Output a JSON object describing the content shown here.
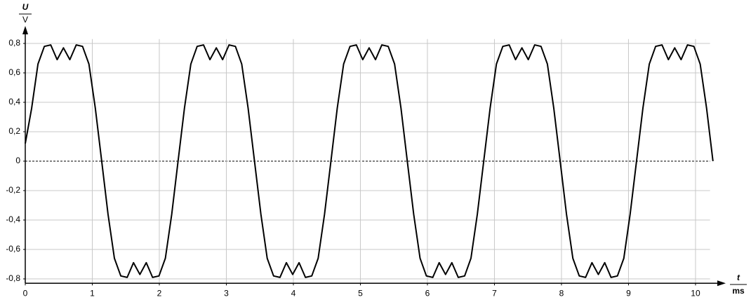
{
  "chart_data": {
    "type": "line",
    "ylabel": {
      "symbol": "U",
      "unit": "V"
    },
    "xlabel": {
      "symbol": "t",
      "unit": "ms"
    },
    "x": [
      0,
      0.095,
      0.19,
      0.285,
      0.38,
      0.475,
      0.57,
      0.665,
      0.76,
      0.855,
      0.95,
      1.045,
      1.14,
      1.235,
      1.33,
      1.425,
      1.52,
      1.615,
      1.71,
      1.805,
      1.9,
      1.995,
      2.09,
      2.185,
      2.28,
      2.375,
      2.47,
      2.565,
      2.66,
      2.755,
      2.85,
      2.945,
      3.04,
      3.135,
      3.23,
      3.325,
      3.42,
      3.515,
      3.61,
      3.705,
      3.8,
      3.895,
      3.99,
      4.085,
      4.18,
      4.275,
      4.37,
      4.465,
      4.56,
      4.655,
      4.75,
      4.845,
      4.94,
      5.035,
      5.13,
      5.225,
      5.32,
      5.415,
      5.51,
      5.605,
      5.7,
      5.795,
      5.89,
      5.985,
      6.08,
      6.175,
      6.27,
      6.365,
      6.46,
      6.555,
      6.65,
      6.745,
      6.84,
      6.935,
      7.03,
      7.125,
      7.22,
      7.315,
      7.41,
      7.505,
      7.6,
      7.695,
      7.79,
      7.885,
      7.98,
      8.075,
      8.17,
      8.265,
      8.36,
      8.455,
      8.55,
      8.645,
      8.74,
      8.835,
      8.93,
      9.025,
      9.12,
      9.215,
      9.31,
      9.405,
      9.5,
      9.595,
      9.69,
      9.785,
      9.88,
      9.975,
      10.07,
      10.165,
      10.26
    ],
    "series": [
      {
        "color": "#000000",
        "values": [
          0.12,
          0.36,
          0.66,
          0.78,
          0.79,
          0.69,
          0.77,
          0.69,
          0.79,
          0.78,
          0.66,
          0.36,
          0,
          -0.36,
          -0.66,
          -0.78,
          -0.79,
          -0.69,
          -0.77,
          -0.69,
          -0.79,
          -0.78,
          -0.66,
          -0.36,
          0,
          0.36,
          0.66,
          0.78,
          0.79,
          0.69,
          0.77,
          0.69,
          0.79,
          0.78,
          0.66,
          0.36,
          0,
          -0.36,
          -0.66,
          -0.78,
          -0.79,
          -0.69,
          -0.77,
          -0.69,
          -0.79,
          -0.78,
          -0.66,
          -0.36,
          0,
          0.36,
          0.66,
          0.78,
          0.79,
          0.69,
          0.77,
          0.69,
          0.79,
          0.78,
          0.66,
          0.36,
          0,
          -0.36,
          -0.66,
          -0.78,
          -0.79,
          -0.69,
          -0.77,
          -0.69,
          -0.79,
          -0.78,
          -0.66,
          -0.36,
          0,
          0.36,
          0.66,
          0.78,
          0.79,
          0.69,
          0.77,
          0.69,
          0.79,
          0.78,
          0.66,
          0.36,
          0,
          -0.36,
          -0.66,
          -0.78,
          -0.79,
          -0.69,
          -0.77,
          -0.69,
          -0.79,
          -0.78,
          -0.66,
          -0.36,
          0,
          0.36,
          0.66,
          0.78,
          0.79,
          0.69,
          0.77,
          0.69,
          0.79,
          0.78,
          0.66,
          0.36,
          0
        ]
      }
    ],
    "xlim": [
      0,
      10.3
    ],
    "ylim": [
      -0.83,
      0.83
    ],
    "xticks": [
      0,
      1,
      2,
      3,
      4,
      5,
      6,
      7,
      8,
      9,
      10
    ],
    "yticks": [
      {
        "value": -0.8,
        "label": "-0,8"
      },
      {
        "value": -0.6,
        "label": "-0,6"
      },
      {
        "value": -0.4,
        "label": "-0,4"
      },
      {
        "value": -0.2,
        "label": "-0,2"
      },
      0,
      {
        "value": 0.2,
        "label": "0,2"
      },
      {
        "value": 0.4,
        "label": "0,4"
      },
      {
        "value": 0.6,
        "label": "0,6"
      },
      {
        "value": 0.8,
        "label": "0,8"
      }
    ],
    "grid": true
  }
}
